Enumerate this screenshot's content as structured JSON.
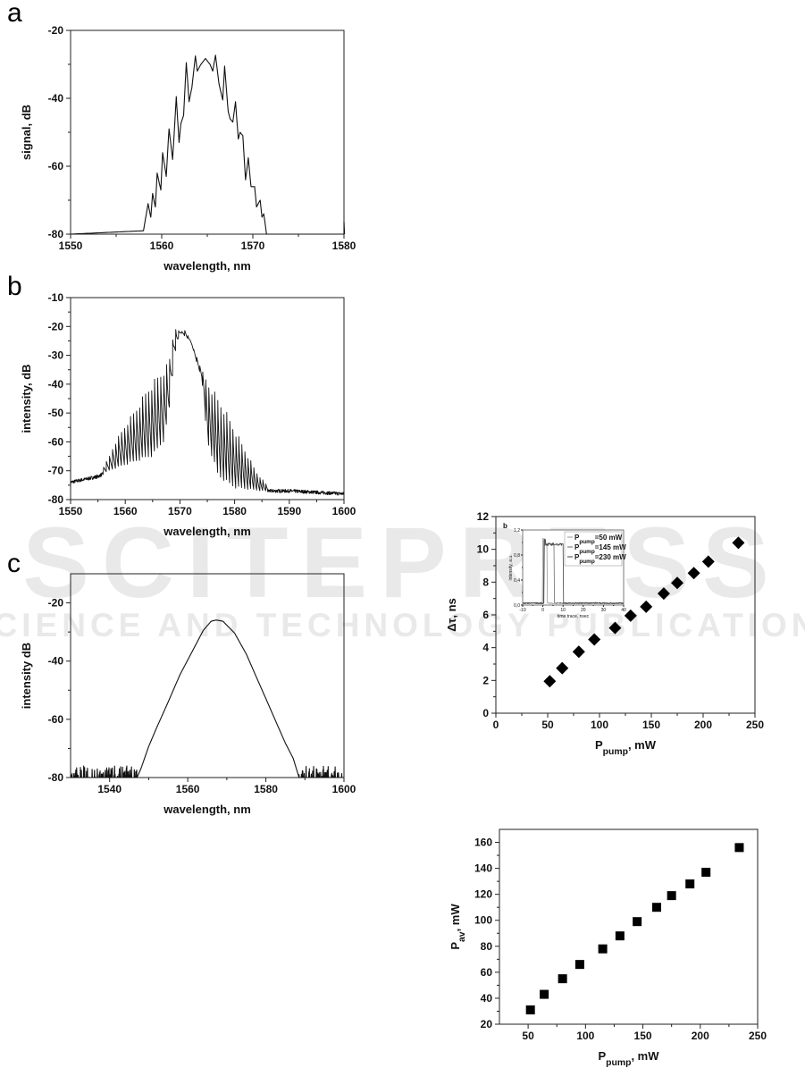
{
  "watermark": {
    "main": "SCITEPRESS",
    "sub": "SCIENCE AND TECHNOLOGY PUBLICATIONS"
  },
  "chart_data": [
    {
      "id": "a",
      "panel_label": "a",
      "type": "line",
      "xlabel": "wavelength, nm",
      "ylabel": "signal, dB",
      "xlim": [
        1550,
        1580
      ],
      "ylim": [
        -80,
        -20
      ],
      "x_ticks": [
        "1550",
        "1560",
        "1570",
        "1580"
      ],
      "y_ticks": [
        "-20",
        "-40",
        "-60",
        "-80"
      ],
      "noise_floor": -80,
      "x": [
        1550,
        1558.0,
        1558.5,
        1558.8,
        1559.0,
        1559.3,
        1559.5,
        1559.9,
        1560.1,
        1560.5,
        1560.8,
        1561.2,
        1561.6,
        1561.9,
        1562.1,
        1562.4,
        1562.7,
        1563.0,
        1563.3,
        1563.7,
        1563.9,
        1564.3,
        1564.8,
        1565.3,
        1565.6,
        1565.9,
        1566.3,
        1566.7,
        1566.9,
        1567.3,
        1567.5,
        1567.8,
        1568.1,
        1568.4,
        1568.6,
        1568.9,
        1569.2,
        1569.5,
        1569.8,
        1570.2,
        1570.4,
        1570.8,
        1571.0,
        1571.2,
        1571.5,
        1580
      ],
      "y": [
        -80,
        -79,
        -71,
        -75,
        -68,
        -72,
        -62,
        -67,
        -56,
        -63,
        -49,
        -58,
        -39.5,
        -53,
        -47.5,
        -45,
        -29.5,
        -41,
        -37,
        -27.5,
        -32,
        -30,
        -28.3,
        -30,
        -32,
        -27.3,
        -36,
        -40.5,
        -30.5,
        -44,
        -46,
        -47,
        -41,
        -52,
        -50,
        -51,
        -64,
        -57.5,
        -66,
        -66,
        -72,
        -70,
        -75,
        -74,
        -80,
        -80
      ]
    },
    {
      "id": "b",
      "panel_label": "b",
      "type": "line",
      "xlabel": "wavelength, nm",
      "ylabel": "intensity, dB",
      "xlim": [
        1550,
        1600
      ],
      "ylim": [
        -80,
        -10
      ],
      "x_ticks": [
        "1550",
        "1560",
        "1570",
        "1580",
        "1590",
        "1600"
      ],
      "y_ticks": [
        "-10",
        "-20",
        "-30",
        "-40",
        "-50",
        "-60",
        "-70",
        "-80"
      ],
      "fringe_period_nm": 0.55,
      "upper_envelope": {
        "x": [
          1550,
          1555,
          1557,
          1558,
          1560,
          1562,
          1564,
          1566,
          1568,
          1569,
          1570,
          1571,
          1573,
          1574,
          1576,
          1578,
          1580,
          1582,
          1584,
          1586,
          1590,
          1600
        ],
        "y": [
          -74,
          -72,
          -65,
          -60,
          -53,
          -47,
          -40,
          -35,
          -31,
          -19,
          -22,
          -21,
          -30,
          -35,
          -40,
          -46,
          -54,
          -62,
          -70,
          -75,
          -76.5,
          -77
        ]
      },
      "lower_envelope": {
        "x": [
          1550,
          1555,
          1557,
          1560,
          1565,
          1567,
          1568,
          1569,
          1570,
          1572,
          1573,
          1574,
          1575,
          1577,
          1580,
          1585,
          1590,
          1600
        ],
        "y": [
          -74,
          -72,
          -70,
          -68,
          -65,
          -60,
          -50,
          -30,
          -22,
          -25,
          -32,
          -38,
          -60,
          -72,
          -76,
          -77,
          -77,
          -78
        ]
      }
    },
    {
      "id": "c",
      "panel_label": "c",
      "type": "line",
      "xlabel": "wavelength, nm",
      "ylabel": "intensity  dB",
      "xlim": [
        1530,
        1600
      ],
      "ylim": [
        -80,
        -10
      ],
      "x_ticks": [
        "1540",
        "1560",
        "1580",
        "1600"
      ],
      "y_ticks": [
        "-20",
        "-40",
        "-60",
        "-80"
      ],
      "noise_floor": -80,
      "x": [
        1547,
        1548,
        1550,
        1552,
        1555,
        1558,
        1560,
        1562,
        1564,
        1566,
        1567.3,
        1569,
        1572,
        1575,
        1578,
        1580,
        1583,
        1585,
        1587,
        1588.5
      ],
      "y": [
        -80,
        -77,
        -69.3,
        -63,
        -54,
        -44.7,
        -39.6,
        -34.5,
        -29.4,
        -26.3,
        -25.9,
        -26.3,
        -30.4,
        -37.6,
        -46.8,
        -52.9,
        -62.1,
        -68.2,
        -73.4,
        -80
      ]
    },
    {
      "id": "d",
      "type": "scatter",
      "marker": "diamond",
      "xlabel": {
        "main": "P",
        "sub": "pump",
        "rest": ", mW"
      },
      "ylabel": {
        "main": "Δτ, ns"
      },
      "xlim": [
        0,
        250
      ],
      "ylim": [
        0,
        12
      ],
      "x_ticks": [
        "0",
        "50",
        "100",
        "150",
        "200",
        "250"
      ],
      "y_ticks": [
        "0",
        "2",
        "4",
        "6",
        "8",
        "10",
        "12"
      ],
      "x": [
        52,
        64,
        80,
        95,
        115,
        130,
        145,
        162,
        175,
        191,
        205,
        234
      ],
      "y": [
        1.95,
        2.75,
        3.75,
        4.5,
        5.2,
        5.95,
        6.5,
        7.3,
        7.95,
        8.55,
        9.25,
        10.4
      ],
      "inset": {
        "type": "line",
        "panel_label": "b",
        "xlabel": "time trace, nsec",
        "ylabel": "intensity, a.u.",
        "xlim": [
          -10,
          40
        ],
        "ylim": [
          0,
          1.2
        ],
        "x_ticks": [
          "-10",
          "0",
          "10",
          "20",
          "30",
          "40"
        ],
        "y_ticks": [
          "0,0",
          "0,4",
          "0,8",
          "1,2"
        ],
        "legend_position": "top-right",
        "series": [
          {
            "label_main": "P",
            "label_sub": "pump",
            "label_rest": "=50 mW",
            "color": "#9a9a9a",
            "pulse_start": 0,
            "pulse_end": 2
          },
          {
            "label_main": "P",
            "label_sub": "pump",
            "label_rest": "=145 mW",
            "color": "#6e6e6e",
            "pulse_start": 0.3,
            "pulse_end": 5.5
          },
          {
            "label_main": "P",
            "label_sub": "pump",
            "label_rest": "=230 mW",
            "color": "#444444",
            "pulse_start": 0.6,
            "pulse_end": 10
          }
        ]
      }
    },
    {
      "id": "e",
      "type": "scatter",
      "marker": "square",
      "xlabel": {
        "main": "P",
        "sub": "pump",
        "rest": ", mW"
      },
      "ylabel": {
        "main": "P",
        "sub": "av",
        "rest": ", mW"
      },
      "xlim": [
        25,
        250
      ],
      "ylim": [
        20,
        170
      ],
      "x_ticks": [
        "50",
        "100",
        "150",
        "200",
        "250"
      ],
      "y_ticks": [
        "20",
        "40",
        "60",
        "80",
        "100",
        "120",
        "140",
        "160"
      ],
      "x": [
        52,
        64,
        80,
        95,
        115,
        130,
        145,
        162,
        175,
        191,
        205,
        234
      ],
      "y": [
        31,
        43,
        55,
        66,
        78,
        88,
        99,
        110,
        119,
        128,
        137,
        156
      ]
    }
  ]
}
